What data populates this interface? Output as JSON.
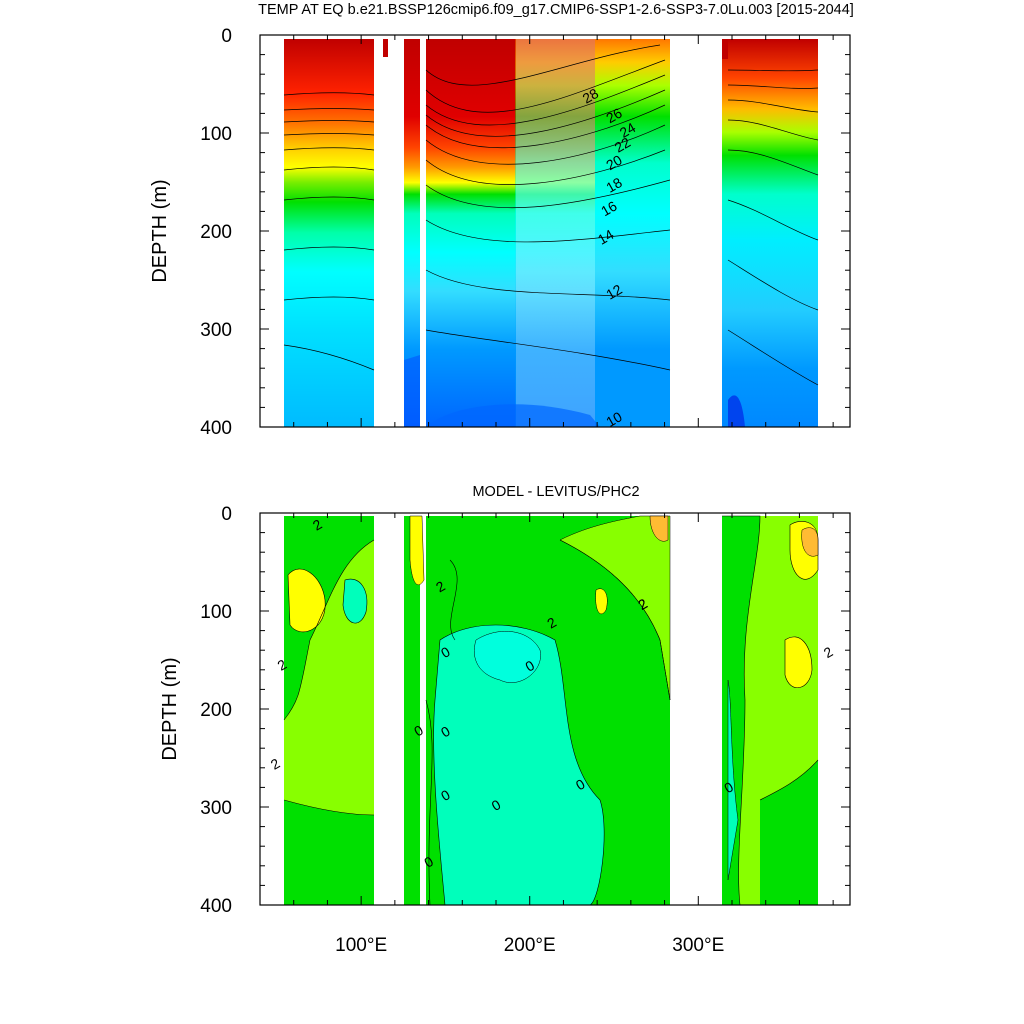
{
  "figure_title": "TEMP AT EQ b.e21.BSSP126cmip6.f09_g17.CMIP6-SSP1-2.6-SSP3-7.0Lu.003 [2015-2044]",
  "chart_data": [
    {
      "type": "heatmap",
      "title": "TEMP AT EQ b.e21.BSSP126cmip6.f09_g17.CMIP6-SSP1-2.6-SSP3-7.0Lu.003 [2015-2044]",
      "xlabel": "",
      "ylabel": "DEPTH (m)",
      "xlim": [
        40,
        390
      ],
      "ylim": [
        0,
        400
      ],
      "y_inverted": true,
      "y_ticks": [
        "0",
        "100",
        "200",
        "300",
        "400"
      ],
      "y_tick_values": [
        0,
        100,
        200,
        300,
        400
      ],
      "x_ticks": [],
      "x_tick_values": [
        100,
        200,
        300
      ],
      "land_gaps_lon": [
        [
          99,
          118
        ],
        [
          280,
          314
        ]
      ],
      "contour_labels": [
        {
          "text": "28",
          "lon": 236,
          "depth": 62
        },
        {
          "text": "26",
          "lon": 250,
          "depth": 82
        },
        {
          "text": "24",
          "lon": 258,
          "depth": 97
        },
        {
          "text": "22",
          "lon": 255,
          "depth": 112
        },
        {
          "text": "20",
          "lon": 250,
          "depth": 130
        },
        {
          "text": "18",
          "lon": 250,
          "depth": 153
        },
        {
          "text": "16",
          "lon": 247,
          "depth": 177
        },
        {
          "text": "14",
          "lon": 245,
          "depth": 206
        },
        {
          "text": "12",
          "lon": 250,
          "depth": 262
        },
        {
          "text": "10",
          "lon": 250,
          "depth": 392
        }
      ],
      "colors": {
        "warm_top": "#c00000",
        "mid_orange": "#ff7700",
        "yellow": "#ffff00",
        "green": "#00e000",
        "cyan": "#00ffff",
        "light_blue": "#00ccff",
        "deep_blue": "#0055ff"
      }
    },
    {
      "type": "heatmap",
      "title": "MODEL - LEVITUS/PHC2",
      "xlabel": "",
      "ylabel": "DEPTH (m)",
      "xlim": [
        40,
        390
      ],
      "ylim": [
        0,
        400
      ],
      "y_inverted": true,
      "y_ticks": [
        "0",
        "100",
        "200",
        "300",
        "400"
      ],
      "y_tick_values": [
        0,
        100,
        200,
        300,
        400
      ],
      "x_ticks": [
        "100°E",
        "200°E",
        "300°E"
      ],
      "x_tick_values": [
        100,
        200,
        300
      ],
      "land_gaps_lon": [
        [
          99,
          118
        ],
        [
          280,
          314
        ]
      ],
      "contour_labels": [
        {
          "text": "2",
          "lon": 74,
          "depth": 12
        },
        {
          "text": "2",
          "lon": 147,
          "depth": 75
        },
        {
          "text": "2",
          "lon": 267,
          "depth": 93
        },
        {
          "text": "2",
          "lon": 267,
          "depth": 93
        },
        {
          "text": "2",
          "lon": 213,
          "depth": 112
        },
        {
          "text": "2",
          "lon": 53,
          "depth": 155
        },
        {
          "text": "2",
          "lon": 377,
          "depth": 142
        },
        {
          "text": "0",
          "lon": 150,
          "depth": 142
        },
        {
          "text": "0",
          "lon": 200,
          "depth": 156
        },
        {
          "text": "0",
          "lon": 134,
          "depth": 222
        },
        {
          "text": "0",
          "lon": 150,
          "depth": 223
        },
        {
          "text": "2",
          "lon": 49,
          "depth": 256
        },
        {
          "text": "0",
          "lon": 230,
          "depth": 277
        },
        {
          "text": "0",
          "lon": 150,
          "depth": 288
        },
        {
          "text": "0",
          "lon": 180,
          "depth": 298
        },
        {
          "text": "0",
          "lon": 318,
          "depth": 280
        },
        {
          "text": "0",
          "lon": 140,
          "depth": 356
        }
      ],
      "colors": {
        "base_green": "#00e000",
        "yellow_green": "#88ff00",
        "aqua": "#00ffbb",
        "yellow": "#ffff00",
        "orange": "#ffbb33"
      }
    }
  ]
}
